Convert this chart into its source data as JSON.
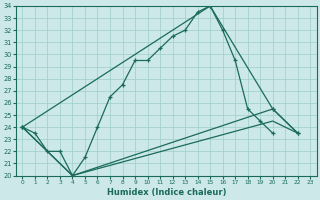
{
  "xlabel": "Humidex (Indice chaleur)",
  "xlim": [
    -0.5,
    23.5
  ],
  "ylim": [
    20,
    34
  ],
  "xticks": [
    0,
    1,
    2,
    3,
    4,
    5,
    6,
    7,
    8,
    9,
    10,
    11,
    12,
    13,
    14,
    15,
    16,
    17,
    18,
    19,
    20,
    21,
    22,
    23
  ],
  "yticks": [
    20,
    21,
    22,
    23,
    24,
    25,
    26,
    27,
    28,
    29,
    30,
    31,
    32,
    33,
    34
  ],
  "bg_color": "#cce8e8",
  "grid_color": "#9ecece",
  "line_color": "#1a6b5a",
  "curve1_x": [
    0,
    1,
    2,
    3,
    4,
    5,
    6,
    7,
    8,
    9,
    10,
    11,
    12,
    13,
    14,
    15,
    16,
    17,
    18,
    19,
    20
  ],
  "curve1_y": [
    24.0,
    23.5,
    22.0,
    22.0,
    20.0,
    21.5,
    24.0,
    26.5,
    27.5,
    29.5,
    29.5,
    30.5,
    31.5,
    32.0,
    33.5,
    34.0,
    32.0,
    29.5,
    25.5,
    24.5,
    23.5
  ],
  "line2_x": [
    0,
    15,
    20,
    22
  ],
  "line2_y": [
    24.0,
    34.0,
    25.5,
    23.5
  ],
  "line3_x": [
    0,
    4,
    20,
    22
  ],
  "line3_y": [
    24.0,
    20.0,
    25.5,
    23.5
  ],
  "line4_x": [
    0,
    4,
    20,
    22
  ],
  "line4_y": [
    24.0,
    20.0,
    24.5,
    23.5
  ]
}
